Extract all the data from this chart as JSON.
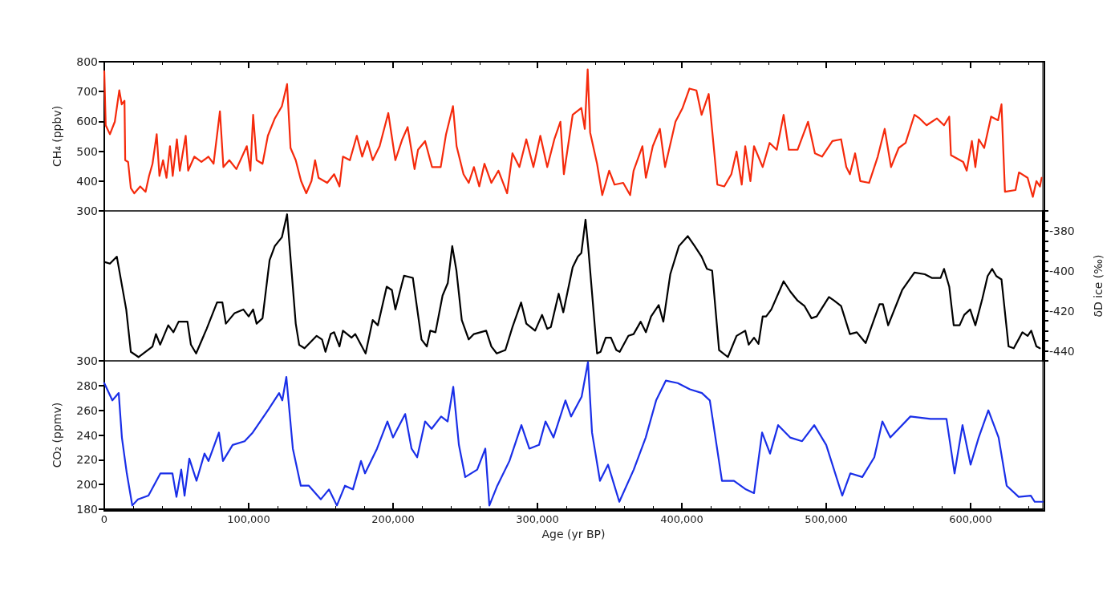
{
  "chart_data": [
    {
      "type": "line",
      "ylabel": "CH₄ (ppbv)",
      "xlim": [
        0,
        650000
      ],
      "xticks": [
        0,
        100000,
        200000,
        300000,
        400000,
        500000,
        600000
      ],
      "ylim": [
        300,
        800
      ],
      "yticks": [
        300,
        400,
        500,
        600,
        700,
        800
      ],
      "tick_labels": "y",
      "marker": "none",
      "line_style": "solid",
      "grid": false,
      "series": [
        {
          "color": "#f52a0c",
          "x": [
            0,
            1000,
            3900,
            7300,
            10400,
            12100,
            14000,
            14500,
            16500,
            18400,
            20800,
            24900,
            28600,
            31000,
            33400,
            36300,
            38200,
            40700,
            43100,
            45500,
            47400,
            50300,
            52300,
            56400,
            58100,
            62400,
            67300,
            72100,
            75700,
            80100,
            82500,
            86600,
            91500,
            98700,
            101200,
            103100,
            105500,
            109600,
            113300,
            118100,
            123000,
            126600,
            129000,
            132600,
            136300,
            139900,
            143500,
            146000,
            148400,
            154400,
            159200,
            162900,
            165300,
            170100,
            174900,
            178600,
            182200,
            185900,
            190700,
            196700,
            201600,
            206400,
            210100,
            214900,
            217300,
            222200,
            227000,
            233000,
            236700,
            241500,
            244000,
            248800,
            252400,
            256000,
            259700,
            263300,
            268100,
            273000,
            279000,
            282700,
            287500,
            292300,
            297200,
            302000,
            306800,
            311700,
            315900,
            318300,
            324400,
            330400,
            332800,
            334800,
            336500,
            341300,
            344900,
            349700,
            353400,
            359400,
            364200,
            366600,
            372700,
            375100,
            379900,
            384800,
            388400,
            395600,
            400500,
            405300,
            410100,
            413700,
            418600,
            424600,
            429400,
            434300,
            437900,
            441500,
            443900,
            447500,
            450000,
            456000,
            460800,
            465700,
            470500,
            474100,
            480200,
            487400,
            492200,
            497100,
            504300,
            510300,
            513900,
            516400,
            520000,
            523600,
            529700,
            535700,
            540500,
            544900,
            550200,
            555000,
            561100,
            564700,
            569500,
            576700,
            581600,
            585200,
            586400,
            594900,
            597300,
            600900,
            603300,
            605700,
            609400,
            614200,
            619000,
            621400,
            623800,
            631100,
            633500,
            639500,
            643100,
            645600,
            648000,
            649200
          ],
          "values": [
            768,
            587,
            557,
            599,
            704,
            657,
            669,
            470,
            464,
            376,
            359,
            382,
            364,
            417,
            458,
            557,
            417,
            470,
            411,
            517,
            417,
            540,
            435,
            552,
            435,
            482,
            464,
            482,
            458,
            634,
            447,
            470,
            440,
            517,
            435,
            622,
            470,
            458,
            552,
            610,
            651,
            725,
            511,
            470,
            400,
            359,
            400,
            470,
            411,
            394,
            423,
            382,
            482,
            470,
            552,
            482,
            534,
            470,
            517,
            628,
            470,
            540,
            581,
            440,
            505,
            534,
            447,
            447,
            557,
            651,
            517,
            423,
            394,
            447,
            382,
            458,
            394,
            435,
            359,
            493,
            447,
            540,
            447,
            552,
            447,
            540,
            599,
            423,
            622,
            645,
            575,
            774,
            563,
            458,
            353,
            435,
            388,
            394,
            353,
            435,
            517,
            411,
            517,
            575,
            447,
            599,
            645,
            710,
            704,
            622,
            692,
            388,
            382,
            423,
            499,
            388,
            517,
            400,
            517,
            447,
            528,
            505,
            622,
            505,
            505,
            599,
            493,
            482,
            534,
            540,
            447,
            423,
            493,
            400,
            394,
            482,
            575,
            447,
            511,
            528,
            622,
            610,
            587,
            610,
            587,
            616,
            487,
            464,
            435,
            534,
            447,
            540,
            511,
            616,
            604,
            657,
            364,
            370,
            429,
            411,
            347,
            400,
            382,
            411
          ]
        }
      ]
    },
    {
      "type": "line",
      "y2label": "δD ice (‰)",
      "xlim": [
        0,
        650000
      ],
      "y2lim": [
        -445,
        -370
      ],
      "y2ticks": [
        {
          "value": -445,
          "label": null
        },
        -440,
        {
          "value": -435,
          "label": null
        },
        {
          "value": -430,
          "label": null
        },
        {
          "value": -425,
          "label": null
        },
        -420,
        {
          "value": -415,
          "label": null
        },
        {
          "value": -410,
          "label": null
        },
        {
          "value": -405,
          "label": null
        },
        -400,
        {
          "value": -395,
          "label": null
        },
        {
          "value": -390,
          "label": null
        },
        {
          "value": -385,
          "label": null
        },
        -380,
        {
          "value": -375,
          "label": null
        },
        {
          "value": -370,
          "label": null
        }
      ],
      "tick_labels": "y",
      "marker": "none",
      "line_style": "solid",
      "grid": false,
      "series": [
        {
          "color": "#000000",
          "axis": "y2",
          "x": [
            0,
            3900,
            8700,
            15200,
            18400,
            23700,
            33400,
            35800,
            38700,
            44300,
            47900,
            51500,
            57600,
            60000,
            63600,
            70900,
            78100,
            81800,
            84200,
            90300,
            96300,
            100000,
            103100,
            105500,
            109600,
            114500,
            118100,
            123000,
            126600,
            132600,
            135000,
            138700,
            147100,
            150800,
            153200,
            156800,
            159200,
            162900,
            165300,
            171300,
            173800,
            181000,
            185900,
            189500,
            195600,
            199200,
            201600,
            207600,
            213700,
            219700,
            223400,
            225800,
            229400,
            234300,
            237900,
            241000,
            243900,
            247600,
            252400,
            256000,
            264500,
            268100,
            271800,
            277800,
            282700,
            288700,
            292300,
            298400,
            303200,
            306800,
            309300,
            314700,
            317900,
            324400,
            328000,
            330400,
            333300,
            335300,
            341300,
            343700,
            347300,
            350900,
            354600,
            357000,
            363000,
            366600,
            371500,
            375100,
            378700,
            384000,
            387200,
            392000,
            398000,
            404100,
            408900,
            413700,
            417400,
            421000,
            425800,
            431900,
            437900,
            443900,
            446300,
            450000,
            453100,
            456000,
            458400,
            462000,
            470500,
            475300,
            480200,
            485000,
            489800,
            493400,
            501900,
            505500,
            510300,
            516400,
            521200,
            527300,
            536900,
            539300,
            542900,
            552600,
            561100,
            568300,
            573100,
            579200,
            581600,
            585200,
            588300,
            592400,
            595600,
            599700,
            603300,
            608100,
            611800,
            614900,
            617800,
            621400,
            626300,
            629900,
            635900,
            639500,
            642000,
            645600,
            648000
          ],
          "values": [
            -395.5,
            -396.4,
            -392.9,
            -419.3,
            -440.5,
            -443.1,
            -437.8,
            -431.6,
            -436.9,
            -427.2,
            -430.7,
            -425.4,
            -425.4,
            -436.9,
            -441.3,
            -429,
            -415.8,
            -415.8,
            -426.4,
            -421.1,
            -419.3,
            -422.8,
            -419.3,
            -426.4,
            -423.7,
            -394.6,
            -387.6,
            -383.2,
            -371.7,
            -426.4,
            -437,
            -438.7,
            -432.5,
            -434.3,
            -440.5,
            -431.6,
            -430.7,
            -437.8,
            -429.9,
            -433.4,
            -431.6,
            -441.3,
            -424.6,
            -427.2,
            -407.9,
            -409.6,
            -419.3,
            -402.4,
            -403.5,
            -434.3,
            -437.8,
            -429.9,
            -430.7,
            -412.3,
            -406.1,
            -387.6,
            -399.9,
            -424.6,
            -434.3,
            -431.6,
            -429.9,
            -437.8,
            -441.3,
            -439.6,
            -428.1,
            -415.8,
            -426.4,
            -429.9,
            -422,
            -429,
            -428.1,
            -411.4,
            -420.7,
            -398.2,
            -392.9,
            -391.1,
            -374.4,
            -389.3,
            -441.3,
            -440.5,
            -433.4,
            -433.4,
            -439.6,
            -440.5,
            -432.5,
            -431.6,
            -425.4,
            -430.7,
            -422.8,
            -417.1,
            -425.4,
            -401.7,
            -387.6,
            -382.6,
            -387.6,
            -392.9,
            -399,
            -399.9,
            -439.6,
            -443.1,
            -432.5,
            -429.9,
            -436.9,
            -433.4,
            -436.5,
            -422.8,
            -422.8,
            -419.3,
            -405.2,
            -410.5,
            -414.9,
            -417.6,
            -423.7,
            -422.8,
            -413.1,
            -414.9,
            -417.6,
            -431.6,
            -430.7,
            -436.1,
            -416.7,
            -416.7,
            -427.2,
            -409.6,
            -400.8,
            -401.7,
            -403.5,
            -403.5,
            -399,
            -407.9,
            -427.2,
            -427.2,
            -422,
            -419.3,
            -427.2,
            -414,
            -402.6,
            -399,
            -402.6,
            -404.3,
            -437.8,
            -438.7,
            -430.7,
            -432.5,
            -429.9,
            -437.8,
            -438.7
          ]
        }
      ]
    },
    {
      "type": "line",
      "xlabel": "Age (yr BP)",
      "ylabel": "CO₂ (ppmv)",
      "xlim": [
        0,
        650000
      ],
      "xticks": [
        0,
        {
          "value": 100000,
          "label": "100,000"
        },
        {
          "value": 200000,
          "label": "200,000"
        },
        {
          "value": 300000,
          "label": "300,000"
        },
        {
          "value": 400000,
          "label": "400,000"
        },
        {
          "value": 500000,
          "label": "500,000"
        },
        {
          "value": 600000,
          "label": "600,000"
        }
      ],
      "ylim": [
        180,
        300
      ],
      "yticks": [
        180,
        200,
        220,
        240,
        260,
        280,
        300
      ],
      "marker": "none",
      "line_style": "solid",
      "grid": false,
      "series": [
        {
          "color": "#1a2fe8",
          "x": [
            0,
            5600,
            10000,
            12200,
            15600,
            19400,
            23300,
            30600,
            38900,
            47200,
            50000,
            53300,
            55600,
            58900,
            63900,
            69400,
            72200,
            79400,
            82200,
            88900,
            97200,
            102800,
            113900,
            121100,
            123300,
            126100,
            130600,
            136100,
            141700,
            150000,
            155600,
            161100,
            166700,
            172200,
            177800,
            180600,
            188900,
            196100,
            200000,
            208400,
            212800,
            216700,
            222200,
            226700,
            233300,
            237800,
            241700,
            245600,
            250000,
            258300,
            263900,
            266700,
            272200,
            280600,
            288900,
            294400,
            301100,
            305600,
            311100,
            319400,
            323300,
            330600,
            335000,
            337800,
            343300,
            348900,
            356700,
            366700,
            375000,
            382200,
            388900,
            397200,
            405600,
            413900,
            419400,
            427800,
            436100,
            444400,
            450000,
            455600,
            461100,
            466700,
            475000,
            483300,
            491700,
            500000,
            511100,
            516700,
            525000,
            533300,
            538900,
            544400,
            558300,
            572200,
            583300,
            588900,
            594400,
            600000,
            605600,
            612300,
            619400,
            625000,
            633300,
            641700,
            644400,
            650000
          ],
          "values": [
            282,
            268,
            274,
            238,
            209,
            183,
            188,
            191,
            209,
            209,
            190,
            212,
            191,
            221,
            203,
            225,
            219,
            242,
            219,
            232,
            235,
            242,
            261,
            274,
            268,
            287,
            229,
            199,
            199,
            188,
            196,
            183,
            199,
            196,
            219,
            209,
            229,
            251,
            238,
            257,
            229,
            222,
            251,
            245,
            255,
            251,
            279,
            232,
            206,
            212,
            229,
            183,
            199,
            219,
            248,
            229,
            232,
            251,
            238,
            268,
            255,
            271,
            299,
            242,
            203,
            216,
            186,
            212,
            238,
            268,
            284,
            282,
            277,
            274,
            268,
            203,
            203,
            196,
            193,
            242,
            225,
            248,
            238,
            235,
            248,
            232,
            191,
            209,
            206,
            222,
            251,
            238,
            255,
            253,
            253,
            209,
            248,
            216,
            238,
            260,
            238,
            199,
            190,
            191,
            186,
            186
          ]
        }
      ]
    }
  ]
}
